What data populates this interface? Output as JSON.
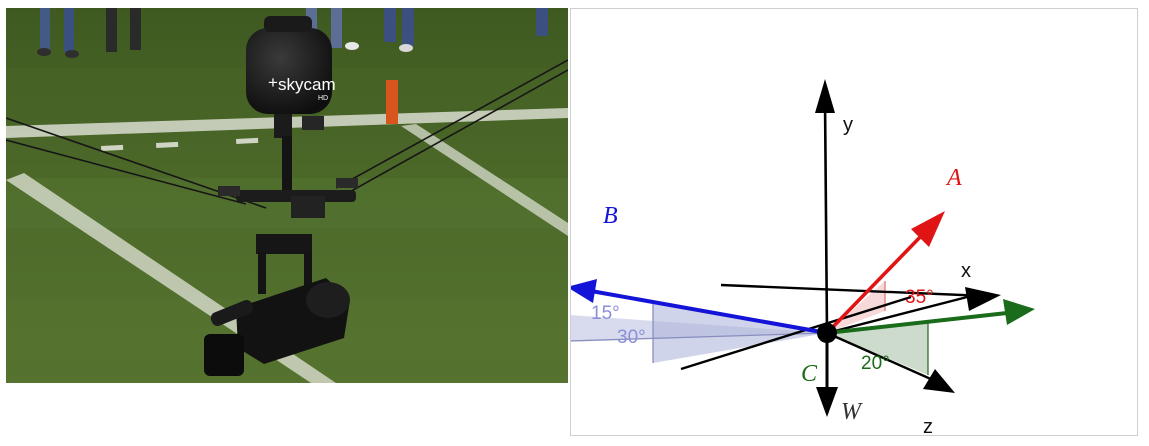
{
  "photo": {
    "camera_brand": "skycam",
    "camera_brand_prefix": "+",
    "camera_badge": "HD"
  },
  "diagram": {
    "axes": {
      "x": "x",
      "y": "y",
      "z": "z"
    },
    "vectors": {
      "A": {
        "label": "A",
        "color": "#e01414"
      },
      "B": {
        "label": "B",
        "color": "#1414d8"
      },
      "C": {
        "label": "C",
        "color": "#1a6b1a"
      },
      "W": {
        "label": "W",
        "color": "#000000"
      }
    },
    "angles": {
      "a": "35°",
      "b1": "15°",
      "b2": "30°",
      "c": "20°"
    }
  }
}
